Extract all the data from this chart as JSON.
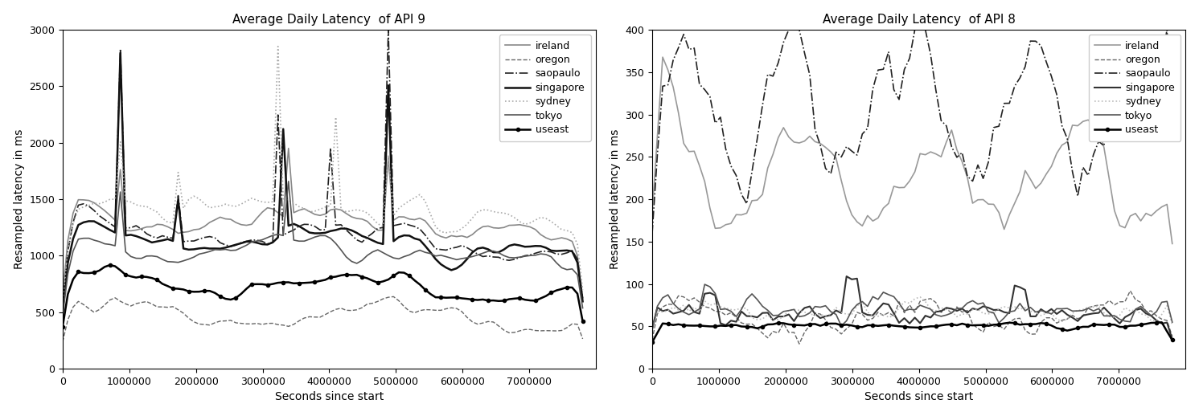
{
  "title1": "Average Daily Latency  of API 9",
  "title2": "Average Daily Latency  of API 8",
  "xlabel": "Seconds since start",
  "ylabel": "Resampled latency in ms",
  "regions": [
    "ireland",
    "oregon",
    "saopaulo",
    "singapore",
    "sydney",
    "tokyo",
    "useast"
  ],
  "line_styles_api9": [
    {
      "color": "#888888",
      "ls": "-",
      "lw": 1.2,
      "marker": null,
      "ms": 0,
      "markevery": 1
    },
    {
      "color": "#666666",
      "ls": "--",
      "lw": 1.0,
      "marker": null,
      "ms": 0,
      "markevery": 1
    },
    {
      "color": "#222222",
      "ls": "-.",
      "lw": 1.2,
      "marker": null,
      "ms": 0,
      "markevery": 1
    },
    {
      "color": "#111111",
      "ls": "-",
      "lw": 1.8,
      "marker": null,
      "ms": 0,
      "markevery": 1
    },
    {
      "color": "#aaaaaa",
      "ls": ":",
      "lw": 1.2,
      "marker": null,
      "ms": 0,
      "markevery": 1
    },
    {
      "color": "#555555",
      "ls": "-",
      "lw": 1.2,
      "marker": null,
      "ms": 0,
      "markevery": 1
    },
    {
      "color": "#000000",
      "ls": "-",
      "lw": 1.8,
      "marker": "o",
      "ms": 3,
      "markevery": 3
    }
  ],
  "line_styles_api8": [
    {
      "color": "#999999",
      "ls": "-",
      "lw": 1.2,
      "marker": null,
      "ms": 0,
      "markevery": 1
    },
    {
      "color": "#666666",
      "ls": "--",
      "lw": 1.0,
      "marker": null,
      "ms": 0,
      "markevery": 1
    },
    {
      "color": "#222222",
      "ls": "-.",
      "lw": 1.2,
      "marker": null,
      "ms": 0,
      "markevery": 1
    },
    {
      "color": "#333333",
      "ls": "-",
      "lw": 1.5,
      "marker": null,
      "ms": 0,
      "markevery": 1
    },
    {
      "color": "#bbbbbb",
      "ls": ":",
      "lw": 1.2,
      "marker": null,
      "ms": 0,
      "markevery": 1
    },
    {
      "color": "#555555",
      "ls": "-",
      "lw": 1.2,
      "marker": null,
      "ms": 0,
      "markevery": 1
    },
    {
      "color": "#000000",
      "ls": "-",
      "lw": 1.8,
      "marker": "o",
      "ms": 3,
      "markevery": 3
    }
  ],
  "api9_ylim": [
    0,
    3000
  ],
  "api9_yticks": [
    0,
    500,
    1000,
    1500,
    2000,
    2500,
    3000
  ],
  "api8_ylim": [
    0,
    400
  ],
  "api8_yticks": [
    0,
    50,
    100,
    150,
    200,
    250,
    300,
    350,
    400
  ],
  "xlim": [
    0,
    8000000
  ],
  "xticks": [
    0,
    1000000,
    2000000,
    3000000,
    4000000,
    5000000,
    6000000,
    7000000
  ],
  "xticklabels": [
    "0",
    "1000000",
    "2000000",
    "3000000",
    "4000000",
    "5000000",
    "6000000",
    "7000000"
  ],
  "seed": 42
}
